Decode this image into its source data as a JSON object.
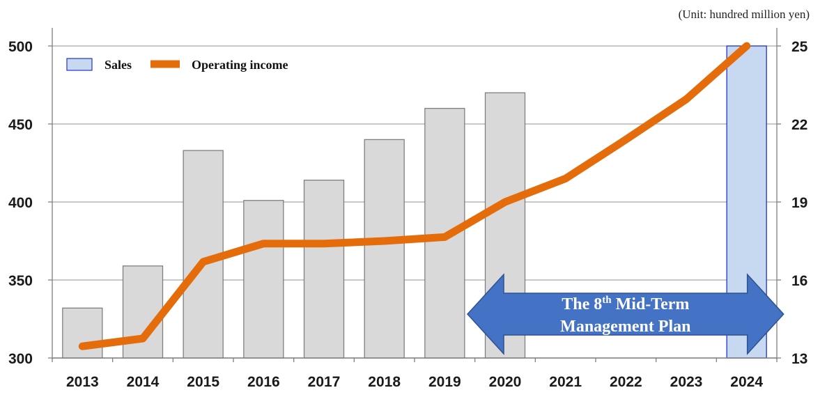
{
  "chart_data": {
    "type": "bar+line",
    "unit_label": "(Unit: hundred million yen)",
    "categories": [
      "2013",
      "2014",
      "2015",
      "2016",
      "2017",
      "2018",
      "2019",
      "2020",
      "2021",
      "2022",
      "2023",
      "2024"
    ],
    "series": [
      {
        "name": "Sales",
        "type": "bar",
        "axis": "left",
        "values": [
          332,
          359,
          433,
          401,
          414,
          440,
          460,
          470,
          null,
          null,
          null,
          500
        ],
        "colors": [
          "#d9d9d9",
          "#d9d9d9",
          "#d9d9d9",
          "#d9d9d9",
          "#d9d9d9",
          "#d9d9d9",
          "#d9d9d9",
          "#d9d9d9",
          null,
          null,
          null,
          "#c6d9f1"
        ]
      },
      {
        "name": "Operating income",
        "type": "line",
        "axis": "right",
        "color": "#e46c0a",
        "values": [
          13.45,
          13.75,
          16.7,
          17.4,
          17.4,
          17.5,
          17.65,
          19.0,
          19.9,
          21.4,
          22.95,
          25.0
        ]
      }
    ],
    "y_left": {
      "min": 300,
      "max": 500,
      "ticks": [
        "300",
        "350",
        "400",
        "450",
        "500"
      ]
    },
    "y_right": {
      "min": 13,
      "max": 25,
      "ticks": [
        "13",
        "16",
        "19",
        "22",
        "25"
      ]
    },
    "grid": true,
    "legend": {
      "position": "top-left",
      "entries": [
        "Sales",
        "Operating income"
      ]
    },
    "annotation": {
      "line1": "The 8",
      "line1_sup": "th",
      "line1_rest": " Mid-Term",
      "line2": "Management Plan",
      "from_category": "2020",
      "to_category": "2024",
      "color": "#4472c4"
    }
  }
}
